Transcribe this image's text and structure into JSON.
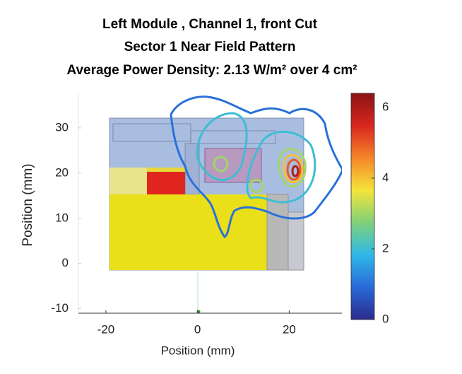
{
  "chart_data": {
    "type": "contour",
    "title": [
      "Left Module , Channel 1, front Cut",
      "Sector 1 Near Field Pattern",
      "Average Power Density: 2.13 W/m² over 4 cm²"
    ],
    "xlabel": "Position (mm)",
    "ylabel": "Position (mm)",
    "xlim": [
      -26,
      31.5
    ],
    "ylim": [
      -11,
      37.5
    ],
    "xticks": [
      -20,
      0,
      20
    ],
    "yticks": [
      -10,
      0,
      10,
      20,
      30
    ],
    "clim": [
      0,
      6.4
    ],
    "cticks": [
      0,
      2,
      4,
      6
    ],
    "colormap": [
      "#2b2a8c",
      "#2a6ad8",
      "#2fb8e8",
      "#7fd07a",
      "#f5e43a",
      "#f5862a",
      "#d8261f",
      "#8a1414"
    ],
    "contour_levels": [
      1,
      2,
      3,
      4,
      5,
      6
    ]
  }
}
